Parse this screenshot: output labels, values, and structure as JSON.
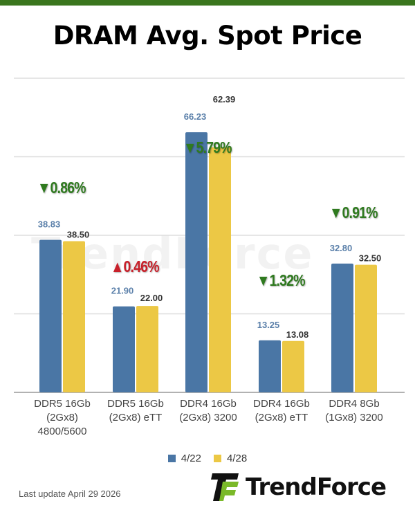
{
  "header": {
    "title": "DRAM Avg. Spot Price"
  },
  "chart_data": {
    "type": "bar",
    "title": "DRAM Avg. Spot Price",
    "categories": [
      "DDR5 16Gb\n(2Gx8)\n4800/5600",
      "DDR5 16Gb\n(2Gx8) eTT",
      "DDR4 16Gb\n(2Gx8) 3200",
      "DDR4 16Gb\n(2Gx8) eTT",
      "DDR4 8Gb\n(1Gx8) 3200"
    ],
    "series": [
      {
        "name": "4/22",
        "color": "#4a76a5",
        "values": [
          38.83,
          21.9,
          66.23,
          13.25,
          32.8
        ],
        "labels": [
          "38.83",
          "21.90",
          "66.23",
          "13.25",
          "32.80"
        ]
      },
      {
        "name": "4/28",
        "color": "#ecc845",
        "values": [
          38.5,
          22.0,
          62.39,
          13.08,
          32.5
        ],
        "labels": [
          "38.50",
          "22.00",
          "62.39",
          "13.08",
          "32.50"
        ]
      }
    ],
    "changes": [
      {
        "text": "▼0.86%",
        "direction": "down",
        "color": "#2f7a1f"
      },
      {
        "text": "▲0.46%",
        "direction": "up",
        "color": "#c8202a"
      },
      {
        "text": "▼5.79%",
        "direction": "down",
        "color": "#2f7a1f"
      },
      {
        "text": "▼1.32%",
        "direction": "down",
        "color": "#2f7a1f"
      },
      {
        "text": "▼0.91%",
        "direction": "down",
        "color": "#2f7a1f"
      }
    ],
    "ylim": [
      0,
      80
    ],
    "grid": true,
    "legend_position": "bottom"
  },
  "legend": [
    {
      "label": "4/22",
      "color": "#4a76a5"
    },
    {
      "label": "4/28",
      "color": "#ecc845"
    }
  ],
  "footer": {
    "last_update": "Last update  April 29  2026"
  },
  "logo": {
    "text": "TrendForce"
  },
  "colors": {
    "brand_green": "#3a761e",
    "logo_green": "#7ab929"
  }
}
